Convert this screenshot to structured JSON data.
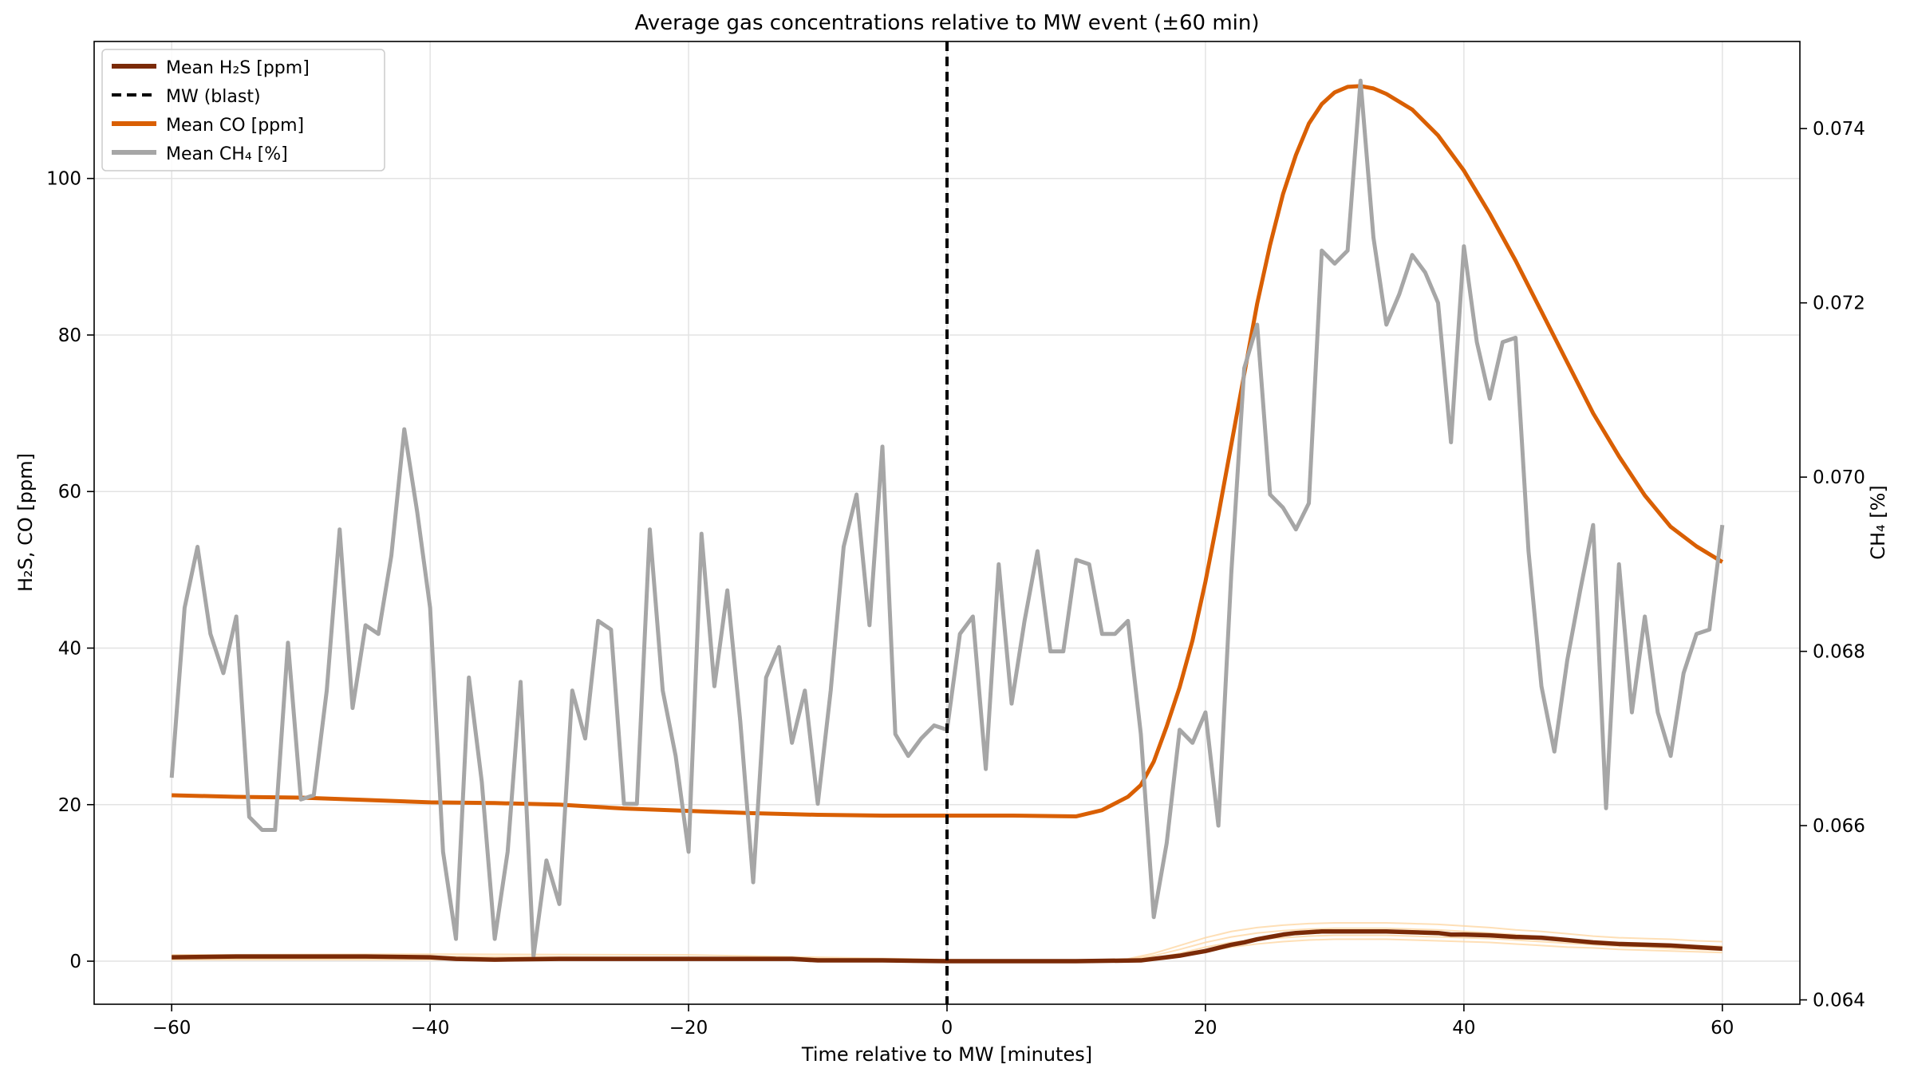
{
  "chart_data": {
    "type": "line",
    "title": "Average gas concentrations relative to MW event (±60 min)",
    "xlabel": "Time relative to MW [minutes]",
    "ylabel_left": "H₂S, CO [ppm]",
    "ylabel_right": "CH₄ [%]",
    "xlim": [
      -66,
      66
    ],
    "ylim_left": [
      -5.5,
      117.5
    ],
    "ylim_right": [
      0.06395,
      0.075
    ],
    "xticks": [
      -60,
      -40,
      -20,
      0,
      20,
      40,
      60
    ],
    "xtick_labels": [
      "−60",
      "−40",
      "−20",
      "0",
      "20",
      "40",
      "60"
    ],
    "yticks_left": [
      0,
      20,
      40,
      60,
      80,
      100
    ],
    "yticks_left_labels": [
      "0",
      "20",
      "40",
      "60",
      "80",
      "100"
    ],
    "yticks_right": [
      0.064,
      0.066,
      0.068,
      0.07,
      0.072,
      0.074
    ],
    "yticks_right_labels": [
      "0.064",
      "0.066",
      "0.068",
      "0.070",
      "0.072",
      "0.074"
    ],
    "grid": true,
    "legend_position": "top-left",
    "vline": {
      "x": 0,
      "name": "MW (blast)",
      "color": "#000000",
      "style": "dashed"
    },
    "series": [
      {
        "name": "Mean H₂S [ppm]",
        "axis": "left",
        "color": "#7a2a07",
        "x": [
          -60,
          -55,
          -50,
          -45,
          -40,
          -38,
          -35,
          -30,
          -25,
          -20,
          -15,
          -12,
          -10,
          -5,
          0,
          5,
          10,
          15,
          16,
          17,
          18,
          19,
          20,
          21,
          22,
          23,
          24,
          25,
          26,
          27,
          28,
          29,
          30,
          32,
          34,
          36,
          38,
          39,
          40,
          42,
          44,
          46,
          48,
          50,
          52,
          54,
          56,
          58,
          60
        ],
        "values": [
          0.5,
          0.6,
          0.6,
          0.6,
          0.5,
          0.3,
          0.2,
          0.3,
          0.3,
          0.3,
          0.3,
          0.3,
          0.1,
          0.1,
          0.0,
          0.0,
          0.0,
          0.1,
          0.3,
          0.5,
          0.7,
          1.0,
          1.3,
          1.7,
          2.1,
          2.4,
          2.8,
          3.1,
          3.4,
          3.6,
          3.7,
          3.8,
          3.8,
          3.8,
          3.8,
          3.7,
          3.6,
          3.4,
          3.4,
          3.3,
          3.1,
          3.0,
          2.7,
          2.4,
          2.2,
          2.1,
          2.0,
          1.8,
          1.6
        ]
      },
      {
        "name": "Mean CO [ppm]",
        "axis": "left",
        "color": "#d95f02",
        "x": [
          -60,
          -55,
          -50,
          -45,
          -40,
          -35,
          -30,
          -25,
          -20,
          -15,
          -10,
          -5,
          0,
          5,
          10,
          12,
          14,
          15,
          16,
          17,
          18,
          19,
          20,
          21,
          22,
          23,
          24,
          25,
          26,
          27,
          28,
          29,
          30,
          31,
          32,
          33,
          34,
          36,
          38,
          40,
          42,
          44,
          46,
          48,
          50,
          52,
          54,
          56,
          58,
          60
        ],
        "values": [
          21.2,
          21.0,
          20.9,
          20.6,
          20.3,
          20.2,
          20.0,
          19.5,
          19.2,
          18.9,
          18.7,
          18.6,
          18.6,
          18.6,
          18.5,
          19.3,
          21.0,
          22.5,
          25.5,
          30.0,
          35.0,
          41.0,
          48.5,
          57.0,
          66.0,
          75.0,
          84.0,
          91.5,
          98.0,
          103.0,
          107.0,
          109.5,
          111.0,
          111.7,
          111.8,
          111.5,
          110.8,
          108.8,
          105.5,
          101.0,
          95.5,
          89.5,
          83.0,
          76.5,
          70.0,
          64.5,
          59.5,
          55.5,
          53.0,
          51.0
        ]
      },
      {
        "name": "Mean CH₄ [%]",
        "axis": "right",
        "color": "#a6a6a6",
        "x": [
          -60,
          -59,
          -58,
          -57,
          -56,
          -55,
          -54,
          -53,
          -52,
          -51,
          -50,
          -49,
          -48,
          -47,
          -46,
          -45,
          -44,
          -43,
          -42,
          -41,
          -40,
          -39,
          -38,
          -37,
          -36,
          -35,
          -34,
          -33,
          -32,
          -31,
          -30,
          -29,
          -28,
          -27,
          -26,
          -25,
          -24,
          -23,
          -22,
          -21,
          -20,
          -19,
          -18,
          -17,
          -16,
          -15,
          -14,
          -13,
          -12,
          -11,
          -10,
          -9,
          -8,
          -7,
          -6,
          -5,
          -4,
          -3,
          -2,
          -1,
          0,
          1,
          2,
          3,
          4,
          5,
          6,
          7,
          8,
          9,
          10,
          11,
          12,
          13,
          14,
          15,
          16,
          17,
          18,
          19,
          20,
          21,
          22,
          23,
          24,
          25,
          26,
          27,
          28,
          29,
          30,
          31,
          32,
          33,
          34,
          35,
          36,
          37,
          38,
          39,
          40,
          41,
          42,
          43,
          44,
          45,
          46,
          47,
          48,
          49,
          50,
          51,
          52,
          53,
          54,
          55,
          56,
          57,
          58,
          59,
          60
        ],
        "values": [
          0.06655,
          0.0685,
          0.0692,
          0.0682,
          0.06775,
          0.0684,
          0.0661,
          0.06595,
          0.06595,
          0.0681,
          0.0663,
          0.06635,
          0.06755,
          0.0694,
          0.06735,
          0.0683,
          0.0682,
          0.0691,
          0.07055,
          0.0696,
          0.0685,
          0.0657,
          0.0647,
          0.0677,
          0.0665,
          0.0647,
          0.0657,
          0.06765,
          0.0645,
          0.0656,
          0.0651,
          0.06755,
          0.067,
          0.06835,
          0.06825,
          0.06625,
          0.06625,
          0.0694,
          0.06755,
          0.0668,
          0.0657,
          0.06935,
          0.0676,
          0.0687,
          0.0672,
          0.06535,
          0.0677,
          0.06805,
          0.06695,
          0.06755,
          0.06625,
          0.06755,
          0.0692,
          0.0698,
          0.0683,
          0.07035,
          0.06705,
          0.0668,
          0.067,
          0.06715,
          0.0671,
          0.0682,
          0.0684,
          0.06665,
          0.069,
          0.0674,
          0.06835,
          0.06915,
          0.068,
          0.068,
          0.06905,
          0.069,
          0.0682,
          0.0682,
          0.06835,
          0.06705,
          0.06495,
          0.0658,
          0.0671,
          0.06695,
          0.0673,
          0.066,
          0.0689,
          0.07125,
          0.07175,
          0.0698,
          0.06965,
          0.0694,
          0.0697,
          0.0726,
          0.07245,
          0.0726,
          0.07455,
          0.07275,
          0.07175,
          0.0721,
          0.07255,
          0.07235,
          0.072,
          0.0704,
          0.07265,
          0.07155,
          0.0709,
          0.07155,
          0.0716,
          0.06915,
          0.0676,
          0.06685,
          0.0679,
          0.0687,
          0.06945,
          0.0662,
          0.069,
          0.0673,
          0.0684,
          0.0673,
          0.0668,
          0.06775,
          0.0682,
          0.06825,
          0.06945
        ]
      }
    ],
    "faint_traces": {
      "color": "#fdd49e",
      "x": [
        -60,
        -40,
        -20,
        0,
        10,
        14,
        16,
        18,
        20,
        22,
        24,
        26,
        28,
        30,
        32,
        34,
        36,
        38,
        40,
        42,
        44,
        46,
        48,
        50,
        52,
        54,
        56,
        58,
        60
      ],
      "lines": [
        [
          0.8,
          0.9,
          0.8,
          0.2,
          0.1,
          0.3,
          1.0,
          2.0,
          3.0,
          3.8,
          4.3,
          4.6,
          4.8,
          4.9,
          4.9,
          4.9,
          4.8,
          4.7,
          4.5,
          4.3,
          4.0,
          3.8,
          3.5,
          3.2,
          3.0,
          2.9,
          2.8,
          2.6,
          2.5
        ],
        [
          0.3,
          0.4,
          0.3,
          0.0,
          0.0,
          0.1,
          0.4,
          1.0,
          1.8,
          2.4,
          2.8,
          3.0,
          3.2,
          3.3,
          3.3,
          3.3,
          3.2,
          3.1,
          3.0,
          2.9,
          2.7,
          2.5,
          2.3,
          2.1,
          1.9,
          1.8,
          1.6,
          1.5,
          1.4
        ],
        [
          0.5,
          0.6,
          0.5,
          0.1,
          0.0,
          0.2,
          0.7,
          1.5,
          2.4,
          3.1,
          3.6,
          3.9,
          4.1,
          4.2,
          4.2,
          4.2,
          4.1,
          4.0,
          3.8,
          3.6,
          3.4,
          3.1,
          2.8,
          2.6,
          2.4,
          2.3,
          2.1,
          2.0,
          1.9
        ],
        [
          0.2,
          0.2,
          0.2,
          0.0,
          0.0,
          0.0,
          0.2,
          0.6,
          1.2,
          1.8,
          2.2,
          2.5,
          2.7,
          2.8,
          2.8,
          2.8,
          2.7,
          2.6,
          2.5,
          2.4,
          2.2,
          2.0,
          1.8,
          1.7,
          1.5,
          1.4,
          1.3,
          1.2,
          1.1
        ]
      ]
    }
  }
}
